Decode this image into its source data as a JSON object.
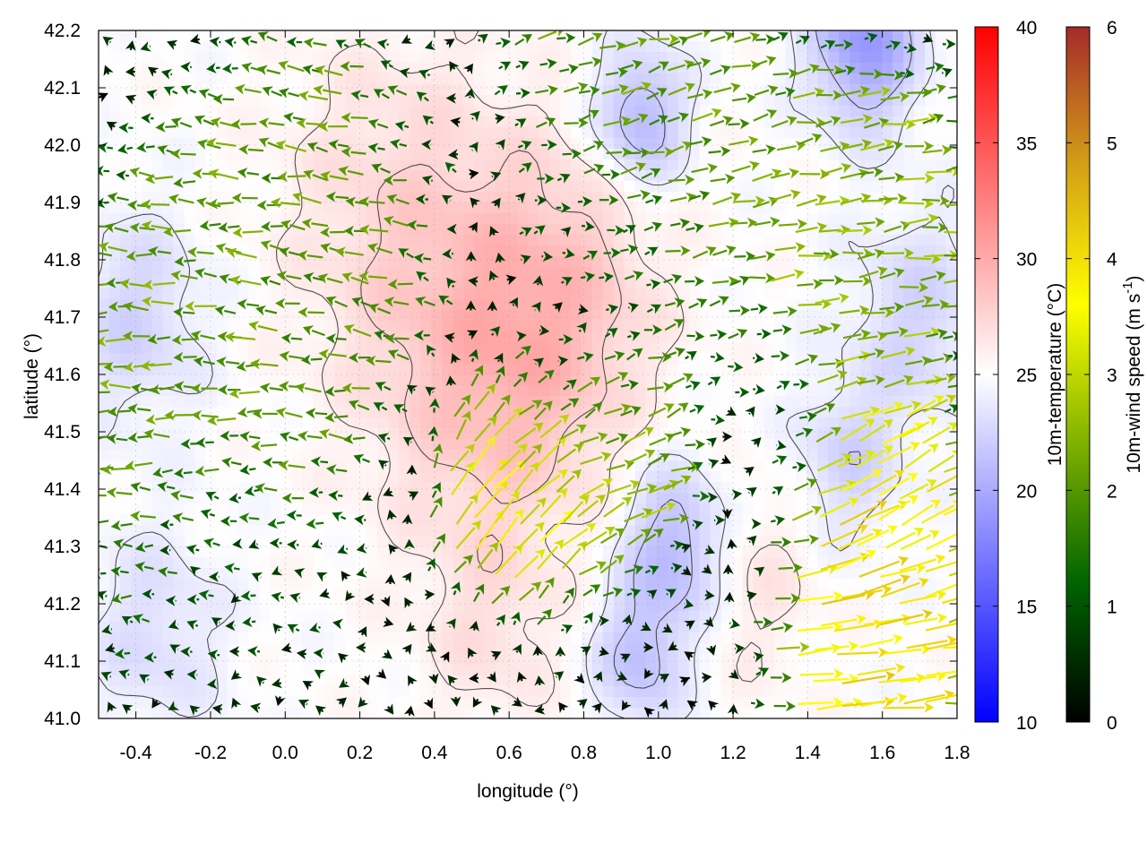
{
  "chart_data": {
    "type": "heatmap",
    "overlay": "vector field (10m wind arrows) with temperature contour lines",
    "xlabel": "longitude (°)",
    "ylabel": "latitude (°)",
    "xlim": [
      -0.5,
      1.8
    ],
    "ylim": [
      41.0,
      42.2
    ],
    "x_ticks": [
      "-0.4",
      "-0.2",
      "0.0",
      "0.2",
      "0.4",
      "0.6",
      "0.8",
      "1.0",
      "1.2",
      "1.4",
      "1.6",
      "1.8"
    ],
    "y_ticks": [
      "41.0",
      "41.1",
      "41.2",
      "41.3",
      "41.4",
      "41.5",
      "41.6",
      "41.7",
      "41.8",
      "41.9",
      "42.0",
      "42.1",
      "42.2"
    ],
    "grid": true,
    "temperature_colorbar": {
      "label": "10m-temperature (°C)",
      "range": [
        10,
        40
      ],
      "ticks": [
        "10",
        "15",
        "20",
        "25",
        "30",
        "35",
        "40"
      ],
      "colors": [
        "#0000ff",
        "#ffffff",
        "#ff0000"
      ]
    },
    "wind_colorbar": {
      "label": "10m-wind speed (m s",
      "label_exponent": "-1",
      "label_close": ")",
      "range": [
        0,
        6
      ],
      "ticks": [
        "0",
        "1",
        "2",
        "3",
        "4",
        "5",
        "6"
      ],
      "colors": [
        "#000000",
        "#006400",
        "#7fb000",
        "#ffff00",
        "#d4a017",
        "#a52a2a"
      ]
    },
    "temperature_regions": [
      {
        "lon": 0.55,
        "lat": 41.6,
        "temp": 28.5,
        "spread": 0.3
      },
      {
        "lon": 0.3,
        "lat": 41.9,
        "temp": 27.0,
        "spread": 0.3
      },
      {
        "lon": 0.75,
        "lat": 41.75,
        "temp": 27.5,
        "spread": 0.25
      },
      {
        "lon": 0.55,
        "lat": 41.15,
        "temp": 26.5,
        "spread": 0.18
      },
      {
        "lon": 1.25,
        "lat": 41.25,
        "temp": 26.5,
        "spread": 0.18
      },
      {
        "lon": 1.55,
        "lat": 42.18,
        "temp": 19.0,
        "spread": 0.14
      },
      {
        "lon": 0.95,
        "lat": 42.05,
        "temp": 20.5,
        "spread": 0.12
      },
      {
        "lon": 1.05,
        "lat": 41.3,
        "temp": 20.5,
        "spread": 0.14
      },
      {
        "lon": 0.95,
        "lat": 41.1,
        "temp": 21.5,
        "spread": 0.12
      },
      {
        "lon": -0.4,
        "lat": 41.7,
        "temp": 22.5,
        "spread": 0.18
      },
      {
        "lon": -0.35,
        "lat": 41.15,
        "temp": 23.0,
        "spread": 0.18
      },
      {
        "lon": 1.7,
        "lat": 41.7,
        "temp": 22.5,
        "spread": 0.18
      },
      {
        "lon": 1.5,
        "lat": 41.45,
        "temp": 22.5,
        "spread": 0.14
      }
    ],
    "wind_regimes": [
      {
        "lon": -0.3,
        "lat": 41.55,
        "u": -2.2,
        "v": 0.0,
        "spread": 0.35
      },
      {
        "lon": 0.1,
        "lat": 41.85,
        "u": -2.0,
        "v": 0.4,
        "spread": 0.35
      },
      {
        "lon": 0.9,
        "lat": 42.05,
        "u": 2.0,
        "v": 0.5,
        "spread": 0.35
      },
      {
        "lon": 1.55,
        "lat": 41.85,
        "u": 2.4,
        "v": 0.3,
        "spread": 0.3
      },
      {
        "lon": 0.75,
        "lat": 41.72,
        "u": 0.0,
        "v": 0.0,
        "spread": 0.22
      },
      {
        "lon": -0.15,
        "lat": 41.22,
        "u": -0.3,
        "v": 0.1,
        "spread": 0.22
      },
      {
        "lon": 0.6,
        "lat": 41.4,
        "u": 2.5,
        "v": 3.0,
        "spread": 0.18
      },
      {
        "lon": 1.55,
        "lat": 41.1,
        "u": 4.0,
        "v": 0.4,
        "spread": 0.22
      },
      {
        "lon": 1.6,
        "lat": 41.35,
        "u": 3.2,
        "v": 2.0,
        "spread": 0.18
      },
      {
        "lon": 0.85,
        "lat": 41.45,
        "u": 2.4,
        "v": 1.0,
        "spread": 0.2
      }
    ]
  }
}
